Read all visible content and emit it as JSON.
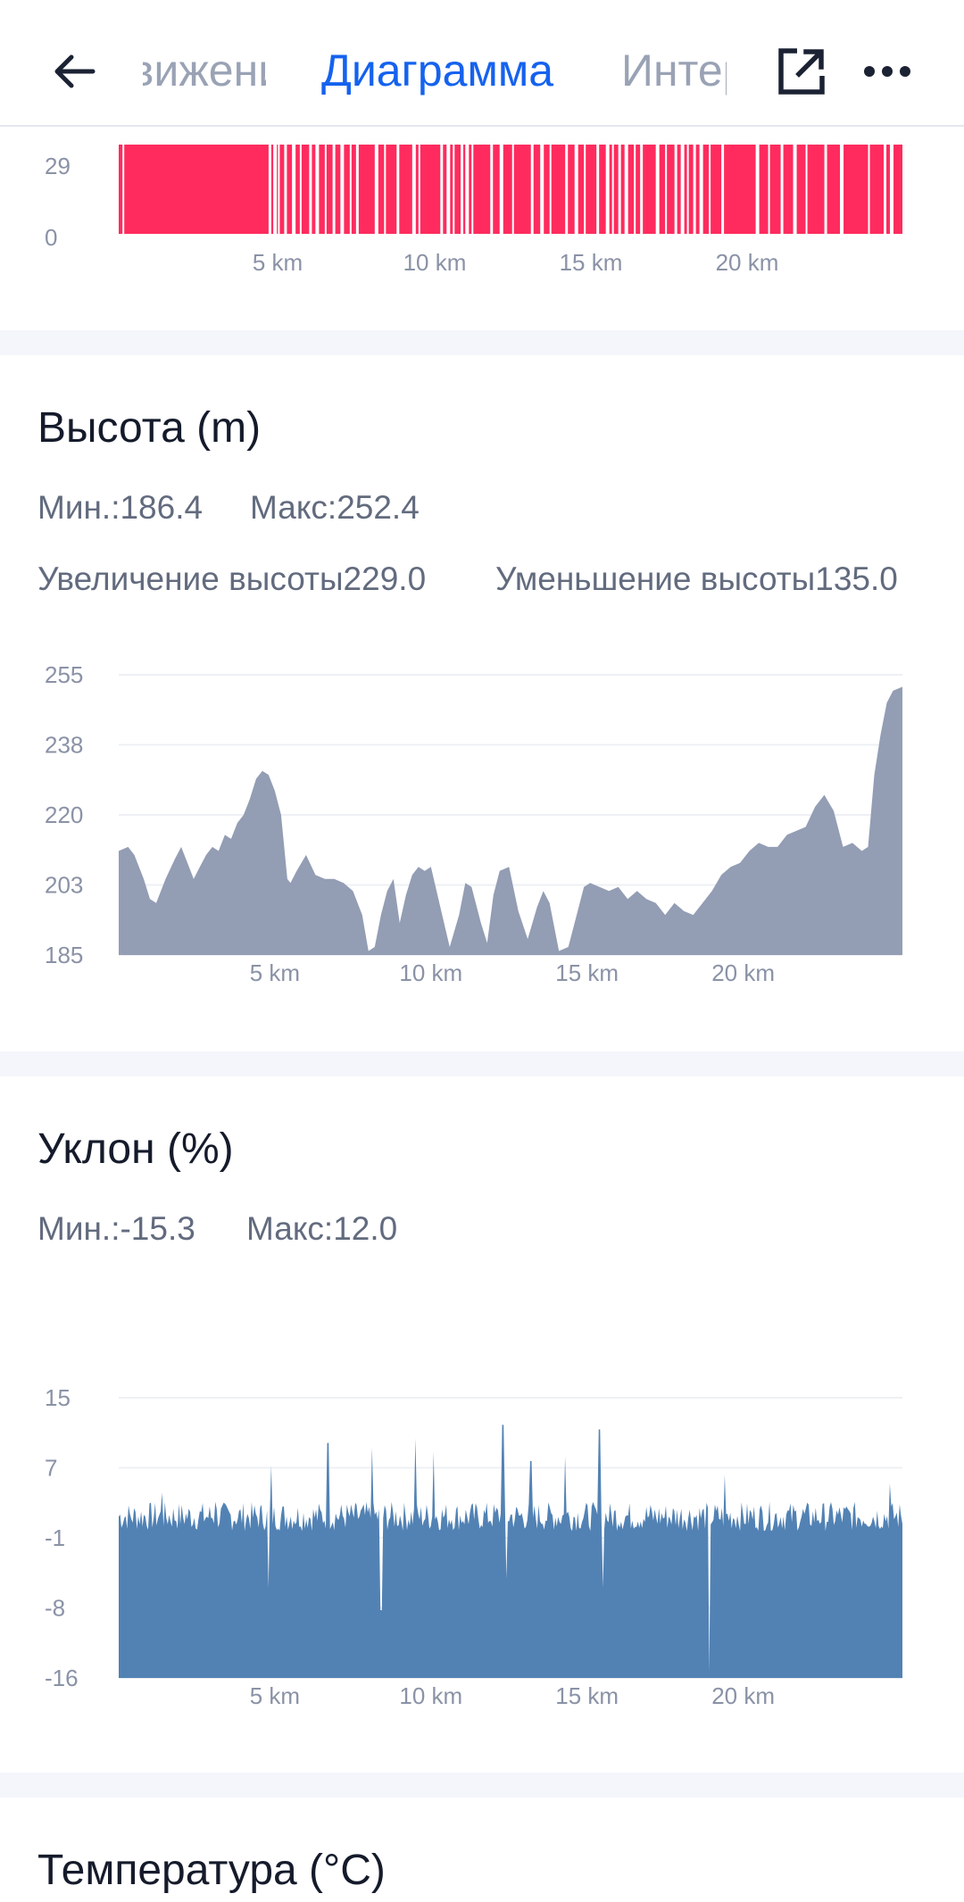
{
  "header": {
    "back_icon": "arrow-left-icon",
    "tabs": [
      {
        "label": "Движение",
        "state": "partially-visible"
      },
      {
        "label": "Диаграмма",
        "state": "active"
      },
      {
        "label": "Интервалы",
        "state": "partially-visible"
      }
    ],
    "share_icon": "external-link-icon",
    "more_icon": "more-horizontal-icon",
    "accent_color": "#1562ee"
  },
  "top_chart": {
    "color": "#ff2b5e",
    "y_ticks": [
      "29",
      "0"
    ],
    "x_ticks": [
      "5 km",
      "10 km",
      "15 km",
      "20 km"
    ]
  },
  "elevation": {
    "title": "Высота (m)",
    "min_text": "Мин.:186.4",
    "max_text": "Макс:252.4",
    "gain_text": "Увеличение высоты229.0",
    "loss_text": "Уменьшение высоты135.0"
  },
  "slope": {
    "title": "Уклон (%)",
    "min_text": "Мин.:-15.3",
    "max_text": "Макс:12.0"
  },
  "temperature": {
    "title": "Температура (°C)"
  },
  "chart_data": [
    {
      "type": "bar",
      "title": "",
      "color": "#ff2b5e",
      "xlabel": "",
      "ylabel": "",
      "x_range_km": [
        0,
        25.1
      ],
      "ylim": [
        0,
        29
      ],
      "y_ticks": [
        "29",
        "0"
      ],
      "x_ticks": [
        "5 km",
        "10 km",
        "15 km",
        "20 km"
      ],
      "gap_positions_km": [
        0.12,
        4.8,
        4.95,
        5.1,
        5.3,
        5.55,
        5.8,
        6.1,
        6.3,
        6.6,
        6.85,
        7.1,
        7.4,
        7.6,
        8.2,
        8.5,
        8.9,
        9.4,
        9.6,
        10.3,
        10.5,
        10.7,
        10.95,
        11.1,
        11.3,
        11.9,
        12.2,
        12.6,
        13.2,
        13.5,
        13.8,
        14.3,
        14.6,
        14.9,
        15.3,
        15.6,
        15.8,
        16.0,
        16.2,
        16.5,
        16.7,
        17.2,
        17.5,
        17.8,
        18.0,
        18.2,
        18.4,
        18.6,
        18.9,
        19.3,
        20.4,
        20.8,
        21.2,
        21.6,
        22.0,
        22.6,
        23.1,
        24.0,
        24.5,
        24.7
      ]
    },
    {
      "type": "area",
      "title": "Высота (m)",
      "color": "#939db4",
      "xlabel": "",
      "ylabel": "",
      "ylim": [
        185,
        255
      ],
      "y_ticks": [
        "255",
        "238",
        "220",
        "203",
        "185"
      ],
      "x_ticks": [
        "5 km",
        "10 km",
        "15 km",
        "20 km"
      ],
      "x": [
        0,
        0.3,
        0.5,
        0.8,
        1.0,
        1.2,
        1.5,
        1.8,
        2.0,
        2.2,
        2.4,
        2.6,
        2.8,
        3.0,
        3.2,
        3.4,
        3.6,
        3.8,
        4.0,
        4.2,
        4.4,
        4.6,
        4.8,
        5.0,
        5.2,
        5.4,
        5.5,
        5.7,
        6.0,
        6.3,
        6.6,
        6.9,
        7.2,
        7.5,
        7.8,
        8.0,
        8.2,
        8.4,
        8.6,
        8.8,
        9.0,
        9.2,
        9.4,
        9.6,
        9.8,
        10.0,
        10.3,
        10.6,
        10.9,
        11.1,
        11.3,
        11.6,
        11.8,
        12.0,
        12.2,
        12.5,
        12.8,
        13.1,
        13.4,
        13.6,
        13.8,
        14.1,
        14.4,
        14.7,
        14.9,
        15.1,
        15.4,
        15.7,
        16.0,
        16.3,
        16.6,
        16.9,
        17.2,
        17.5,
        17.8,
        18.1,
        18.4,
        18.7,
        19.0,
        19.3,
        19.6,
        19.9,
        20.2,
        20.5,
        20.8,
        21.1,
        21.4,
        21.7,
        22.0,
        22.3,
        22.6,
        22.9,
        23.2,
        23.5,
        23.8,
        24.0,
        24.2,
        24.4,
        24.6,
        24.8,
        25.1
      ],
      "values": [
        211,
        212,
        210,
        204,
        199,
        198,
        204,
        209,
        212,
        208,
        204,
        207,
        210,
        212,
        211,
        215,
        214,
        218,
        220,
        224,
        229,
        231,
        230,
        226,
        220,
        204,
        203,
        206,
        210,
        205,
        204,
        204,
        203,
        201,
        195,
        186,
        187,
        195,
        201,
        204,
        193,
        200,
        205,
        207,
        206,
        207,
        197,
        187,
        195,
        203,
        202,
        193,
        188,
        200,
        206,
        207,
        196,
        189,
        197,
        201,
        198,
        186,
        187,
        196,
        202,
        203,
        202,
        201,
        202,
        199,
        201,
        199,
        198,
        195,
        198,
        196,
        195,
        198,
        201,
        205,
        207,
        208,
        211,
        213,
        212,
        212,
        215,
        216,
        217,
        222,
        225,
        221,
        212,
        213,
        211,
        212,
        230,
        240,
        248,
        251,
        252
      ]
    },
    {
      "type": "area",
      "title": "Уклон (%)",
      "color": "#5282b4",
      "xlabel": "",
      "ylabel": "",
      "ylim": [
        -16,
        15
      ],
      "y_ticks": [
        "15",
        "7",
        "-1",
        "-8",
        "-16"
      ],
      "x_ticks": [
        "5 km",
        "10 km",
        "15 km",
        "20 km"
      ],
      "baseline_band": [
        -1.5,
        3.5
      ],
      "spikes": [
        {
          "km": 1.4,
          "value": 4.5
        },
        {
          "km": 3.1,
          "value": 3.5
        },
        {
          "km": 4.9,
          "value": 7.5
        },
        {
          "km": 4.8,
          "value": -6.0
        },
        {
          "km": 6.7,
          "value": 10.0
        },
        {
          "km": 8.1,
          "value": 9.5
        },
        {
          "km": 8.4,
          "value": -8.5
        },
        {
          "km": 9.5,
          "value": 10.5
        },
        {
          "km": 10.1,
          "value": 9.0
        },
        {
          "km": 12.3,
          "value": 12.0
        },
        {
          "km": 12.4,
          "value": -5.0
        },
        {
          "km": 13.2,
          "value": 8.0
        },
        {
          "km": 14.3,
          "value": 8.5
        },
        {
          "km": 15.4,
          "value": 11.5
        },
        {
          "km": 15.5,
          "value": -6.0
        },
        {
          "km": 18.9,
          "value": -15.3
        },
        {
          "km": 19.4,
          "value": 6.5
        },
        {
          "km": 24.7,
          "value": 5.5
        }
      ]
    }
  ]
}
